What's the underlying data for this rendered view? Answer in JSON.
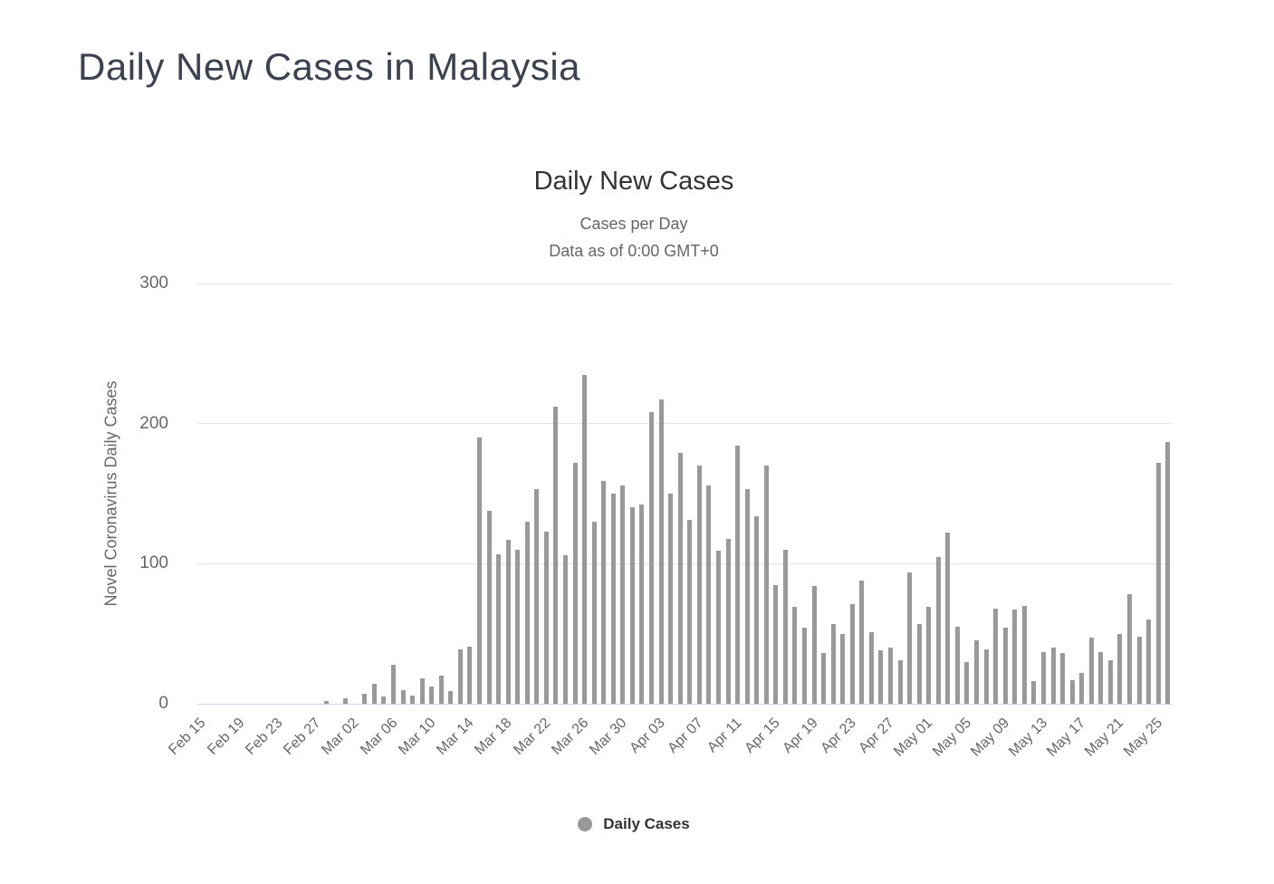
{
  "page": {
    "title": "Daily New Cases in Malaysia"
  },
  "chart": {
    "title": "Daily New Cases",
    "subtitle_line1": "Cases per Day",
    "subtitle_line2": "Data as of 0:00 GMT+0",
    "y_axis_title": "Novel Coronavirus Daily Cases",
    "legend": {
      "label": "Daily Cases"
    }
  },
  "chart_data": {
    "type": "bar",
    "title": "Daily New Cases",
    "subtitle": "Cases per Day / Data as of 0:00 GMT+0",
    "xlabel": "",
    "ylabel": "Novel Coronavirus Daily Cases",
    "ylim": [
      0,
      300
    ],
    "yticks": [
      0,
      100,
      200,
      300
    ],
    "grid": true,
    "legend_position": "bottom",
    "series_name": "Daily Cases",
    "x_tick_every": 4,
    "x_tick_labels_visible": [
      "Feb 15",
      "Feb 19",
      "Feb 23",
      "Feb 27",
      "Mar 02",
      "Mar 06",
      "Mar 10",
      "Mar 14",
      "Mar 18",
      "Mar 22",
      "Mar 26",
      "Mar 30",
      "Apr 03",
      "Apr 07",
      "Apr 11",
      "Apr 15",
      "Apr 19",
      "Apr 23",
      "Apr 27",
      "May 01",
      "May 05",
      "May 09",
      "May 13",
      "May 17",
      "May 21",
      "May 25"
    ],
    "categories": [
      "Feb 15",
      "Feb 16",
      "Feb 17",
      "Feb 18",
      "Feb 19",
      "Feb 20",
      "Feb 21",
      "Feb 22",
      "Feb 23",
      "Feb 24",
      "Feb 25",
      "Feb 26",
      "Feb 27",
      "Feb 28",
      "Feb 29",
      "Mar 01",
      "Mar 02",
      "Mar 03",
      "Mar 04",
      "Mar 05",
      "Mar 06",
      "Mar 07",
      "Mar 08",
      "Mar 09",
      "Mar 10",
      "Mar 11",
      "Mar 12",
      "Mar 13",
      "Mar 14",
      "Mar 15",
      "Mar 16",
      "Mar 17",
      "Mar 18",
      "Mar 19",
      "Mar 20",
      "Mar 21",
      "Mar 22",
      "Mar 23",
      "Mar 24",
      "Mar 25",
      "Mar 26",
      "Mar 27",
      "Mar 28",
      "Mar 29",
      "Mar 30",
      "Mar 31",
      "Apr 01",
      "Apr 02",
      "Apr 03",
      "Apr 04",
      "Apr 05",
      "Apr 06",
      "Apr 07",
      "Apr 08",
      "Apr 09",
      "Apr 10",
      "Apr 11",
      "Apr 12",
      "Apr 13",
      "Apr 14",
      "Apr 15",
      "Apr 16",
      "Apr 17",
      "Apr 18",
      "Apr 19",
      "Apr 20",
      "Apr 21",
      "Apr 22",
      "Apr 23",
      "Apr 24",
      "Apr 25",
      "Apr 26",
      "Apr 27",
      "Apr 28",
      "Apr 29",
      "Apr 30",
      "May 01",
      "May 02",
      "May 03",
      "May 04",
      "May 05",
      "May 06",
      "May 07",
      "May 08",
      "May 09",
      "May 10",
      "May 11",
      "May 12",
      "May 13",
      "May 14",
      "May 15",
      "May 16",
      "May 17",
      "May 18",
      "May 19",
      "May 20",
      "May 21",
      "May 22",
      "May 23",
      "May 24",
      "May 25",
      "May 26"
    ],
    "values": [
      0,
      0,
      0,
      0,
      0,
      0,
      0,
      0,
      0,
      0,
      0,
      0,
      0,
      2,
      0,
      4,
      0,
      7,
      14,
      5,
      28,
      10,
      6,
      18,
      12,
      20,
      9,
      39,
      41,
      190,
      138,
      107,
      117,
      110,
      130,
      153,
      123,
      212,
      106,
      172,
      235,
      130,
      159,
      150,
      156,
      140,
      142,
      208,
      217,
      150,
      179,
      131,
      170,
      156,
      109,
      118,
      184,
      153,
      134,
      170,
      85,
      110,
      69,
      54,
      84,
      36,
      57,
      50,
      71,
      88,
      51,
      38,
      40,
      31,
      94,
      57,
      69,
      105,
      122,
      55,
      30,
      45,
      39,
      68,
      54,
      67,
      70,
      16,
      37,
      40,
      36,
      17,
      22,
      47,
      37,
      31,
      50,
      78,
      48,
      60,
      172,
      187
    ]
  },
  "colors": {
    "page_title": "#3d4250",
    "chart_title": "#333333",
    "subtitle": "#666666",
    "axis_label": "#666666",
    "bar": "#999999",
    "gridline": "#e6e6e6",
    "axis_line": "#ccd6eb",
    "legend_text": "#333333",
    "legend_marker": "#999999"
  }
}
